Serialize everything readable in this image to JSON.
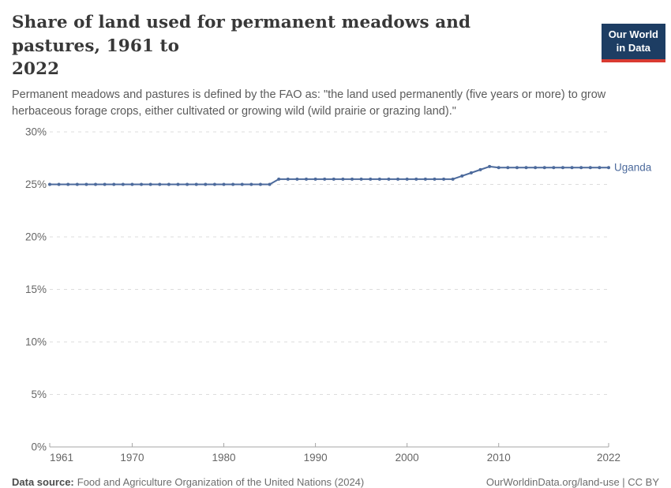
{
  "header": {
    "title_line1": "Share of land used for permanent meadows and pastures, 1961 to",
    "title_line2": "2022",
    "logo": {
      "line1": "Our World",
      "line2": "in Data",
      "bg_color": "#1d3d63",
      "accent_color": "#d93a31"
    },
    "subtitle": "Permanent meadows and pastures is defined by the FAO as: \"the land used permanently (five years or more) to grow herbaceous forage crops, either cultivated or growing wild (wild prairie or grazing land).\""
  },
  "chart_data": {
    "type": "line",
    "title": "Share of land used for permanent meadows and pastures, 1961 to 2022",
    "xlabel": "",
    "ylabel": "",
    "xlim": [
      1961,
      2022
    ],
    "ylim": [
      0,
      30
    ],
    "x_ticks": [
      1961,
      1970,
      1980,
      1990,
      2000,
      2010,
      2022
    ],
    "y_ticks": [
      0,
      5,
      10,
      15,
      20,
      25,
      30
    ],
    "y_tick_suffix": "%",
    "grid": "dashed horizontal gridlines, solid zero axis",
    "legend_position": "end-of-line label",
    "colors": {
      "gridline": "#dcdcdc",
      "axis": "#a6a6a6",
      "tick_label": "#666666"
    },
    "series": [
      {
        "name": "Uganda",
        "color": "#4c6a9c",
        "x": [
          1961,
          1962,
          1963,
          1964,
          1965,
          1966,
          1967,
          1968,
          1969,
          1970,
          1971,
          1972,
          1973,
          1974,
          1975,
          1976,
          1977,
          1978,
          1979,
          1980,
          1981,
          1982,
          1983,
          1984,
          1985,
          1986,
          1987,
          1988,
          1989,
          1990,
          1991,
          1992,
          1993,
          1994,
          1995,
          1996,
          1997,
          1998,
          1999,
          2000,
          2001,
          2002,
          2003,
          2004,
          2005,
          2006,
          2007,
          2008,
          2009,
          2010,
          2011,
          2012,
          2013,
          2014,
          2015,
          2016,
          2017,
          2018,
          2019,
          2020,
          2021,
          2022
        ],
        "values": [
          25,
          25,
          25,
          25,
          25,
          25,
          25,
          25,
          25,
          25,
          25,
          25,
          25,
          25,
          25,
          25,
          25,
          25,
          25,
          25,
          25,
          25,
          25,
          25,
          25,
          25.5,
          25.5,
          25.5,
          25.5,
          25.5,
          25.5,
          25.5,
          25.5,
          25.5,
          25.5,
          25.5,
          25.5,
          25.5,
          25.5,
          25.5,
          25.5,
          25.5,
          25.5,
          25.5,
          25.5,
          25.8,
          26.1,
          26.4,
          26.7,
          26.6,
          26.6,
          26.6,
          26.6,
          26.6,
          26.6,
          26.6,
          26.6,
          26.6,
          26.6,
          26.6,
          26.6,
          26.6
        ]
      }
    ]
  },
  "footer": {
    "datasource_label": "Data source:",
    "datasource_text": "Food and Agriculture Organization of the United Nations (2024)",
    "link_text": "OurWorldinData.org/land-use | CC BY"
  }
}
